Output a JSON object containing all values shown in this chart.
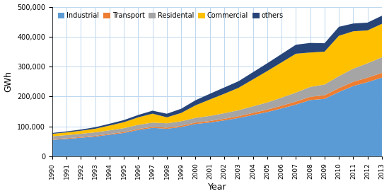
{
  "years": [
    1990,
    1991,
    1992,
    1993,
    1994,
    1995,
    1996,
    1997,
    1998,
    1999,
    2000,
    2001,
    2002,
    2003,
    2004,
    2005,
    2006,
    2007,
    2008,
    2009,
    2010,
    2011,
    2012,
    2013
  ],
  "Industrial": [
    55000,
    58000,
    62000,
    66000,
    72000,
    78000,
    88000,
    95000,
    92000,
    98000,
    108000,
    113000,
    120000,
    128000,
    138000,
    148000,
    160000,
    173000,
    188000,
    192000,
    215000,
    235000,
    248000,
    263000
  ],
  "Transport": [
    2000,
    2200,
    2400,
    2600,
    2800,
    3000,
    3200,
    3500,
    3800,
    4000,
    4500,
    5000,
    5500,
    6000,
    7000,
    8000,
    9000,
    10000,
    11000,
    12000,
    13000,
    14000,
    15000,
    16000
  ],
  "Residental": [
    10000,
    10500,
    11000,
    11500,
    12000,
    13000,
    14000,
    14000,
    14500,
    15000,
    16000,
    17000,
    18500,
    20000,
    22000,
    24000,
    27000,
    30000,
    33000,
    36000,
    40000,
    44000,
    48000,
    52000
  ],
  "Commercial": [
    8000,
    9000,
    10000,
    12000,
    16000,
    20000,
    25000,
    30000,
    20000,
    28000,
    42000,
    55000,
    65000,
    75000,
    90000,
    105000,
    118000,
    130000,
    115000,
    110000,
    135000,
    125000,
    110000,
    112000
  ],
  "others": [
    3000,
    3500,
    4000,
    5000,
    6000,
    7000,
    8000,
    10000,
    12000,
    14000,
    17000,
    19000,
    21000,
    22000,
    24000,
    26000,
    28000,
    30000,
    32000,
    28000,
    30000,
    26000,
    26000,
    27000
  ],
  "colors": {
    "Industrial": "#5B9BD5",
    "Transport": "#ED7D31",
    "Residental": "#A5A5A5",
    "Commercial": "#FFC000",
    "others": "#264478"
  },
  "ylabel": "GWh",
  "xlabel": "Year",
  "ylim": [
    0,
    500000
  ],
  "yticks": [
    0,
    100000,
    200000,
    300000,
    400000,
    500000
  ],
  "legend_labels": [
    "Industrial",
    "Transport",
    "Residental",
    "Commercial",
    "others"
  ],
  "bg_color": "#FFFFFF",
  "grid_color": "#BDD7EE"
}
